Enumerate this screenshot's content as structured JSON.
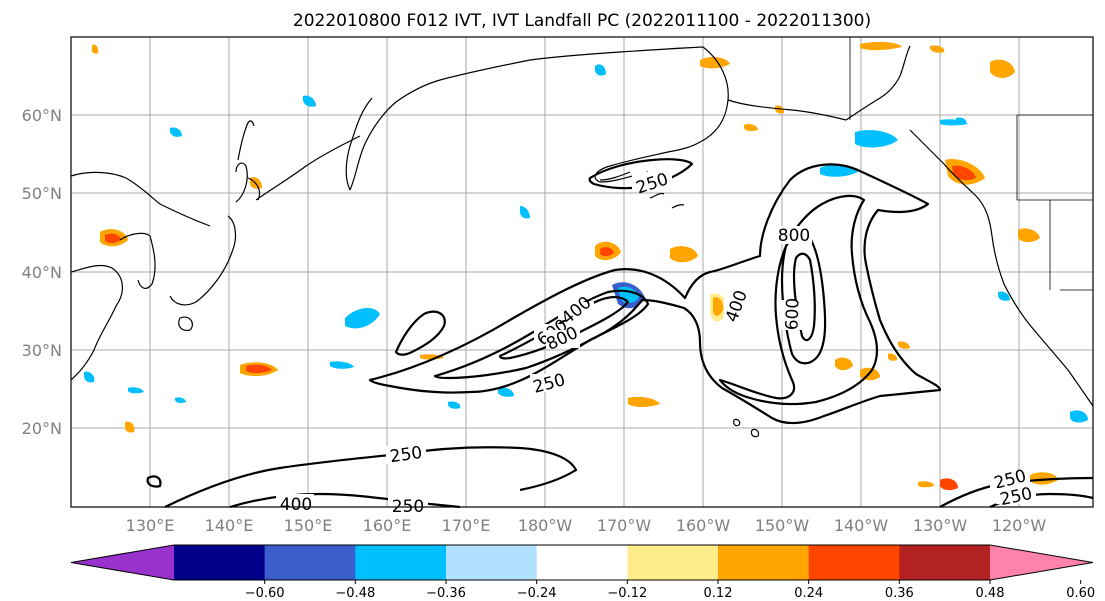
{
  "title": "2022010800 F012 IVT, IVT Landfall PC (2022011100 - 2022011300)",
  "map": {
    "lat_labels": [
      "60°N",
      "50°N",
      "40°N",
      "30°N",
      "20°N"
    ],
    "lon_labels": [
      "130°E",
      "140°E",
      "150°E",
      "160°E",
      "170°E",
      "180°W",
      "170°W",
      "160°W",
      "150°W",
      "140°W",
      "130°W",
      "120°W"
    ],
    "ivt_contour_labels": [
      "250",
      "800",
      "400",
      "600",
      "400",
      "600",
      "800",
      "250",
      "250",
      "400",
      "250",
      "250",
      "250"
    ]
  },
  "colorbar": {
    "ticks": [
      "−0.60",
      "−0.48",
      "−0.36",
      "−0.24",
      "−0.12",
      "0.12",
      "0.24",
      "0.36",
      "0.48",
      "0.60"
    ],
    "colors": [
      "#9932cc",
      "#00008b",
      "#3a5fcd",
      "#00bfff",
      "#b0e2ff",
      "#ffffff",
      "#ffec8b",
      "#ffa500",
      "#ff4500",
      "#b22222",
      "#ff82ab"
    ]
  }
}
